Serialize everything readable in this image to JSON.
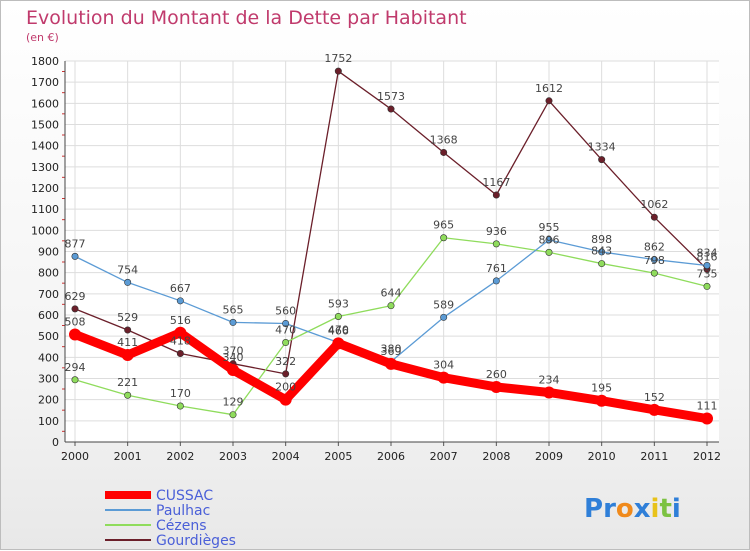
{
  "chart_data": {
    "type": "line",
    "title": "Evolution du Montant de la Dette par Habitant",
    "subtitle": "(en €)",
    "x": [
      "2000",
      "2001",
      "2002",
      "2003",
      "2004",
      "2005",
      "2006",
      "2007",
      "2008",
      "2009",
      "2010",
      "2011",
      "2012"
    ],
    "yticks": [
      0,
      100,
      200,
      300,
      400,
      500,
      600,
      700,
      800,
      900,
      1000,
      1100,
      1200,
      1300,
      1400,
      1500,
      1600,
      1700,
      1800
    ],
    "ylim": [
      0,
      1800
    ],
    "grid": true,
    "legend_position": "bottom-left",
    "series": [
      {
        "name": "CUSSAC",
        "color": "#ff0000",
        "values": [
          508,
          411,
          516,
          340,
          200,
          466,
          369,
          304,
          260,
          234,
          195,
          152,
          111
        ]
      },
      {
        "name": "Paulhac",
        "color": "#5b9bd5",
        "values": [
          877,
          754,
          667,
          565,
          560,
          470,
          380,
          589,
          761,
          955,
          898,
          862,
          834
        ]
      },
      {
        "name": "Cézens",
        "color": "#8fdc5c",
        "values": [
          294,
          221,
          170,
          129,
          470,
          593,
          644,
          965,
          936,
          896,
          843,
          798,
          735
        ]
      },
      {
        "name": "Gourdièges",
        "color": "#6b1f2a",
        "values": [
          629,
          529,
          418,
          370,
          322,
          1752,
          1573,
          1368,
          1167,
          1612,
          1334,
          1062,
          816
        ]
      }
    ]
  },
  "logo": {
    "text": "Proxiti",
    "letters": [
      "P",
      "r",
      "o",
      "x",
      "i",
      "t",
      "i"
    ],
    "colors": [
      "#2f7fd8",
      "#2f7fd8",
      "#f08a1c",
      "#2f7fd8",
      "#e8c21a",
      "#7cc242",
      "#2f7fd8"
    ]
  }
}
